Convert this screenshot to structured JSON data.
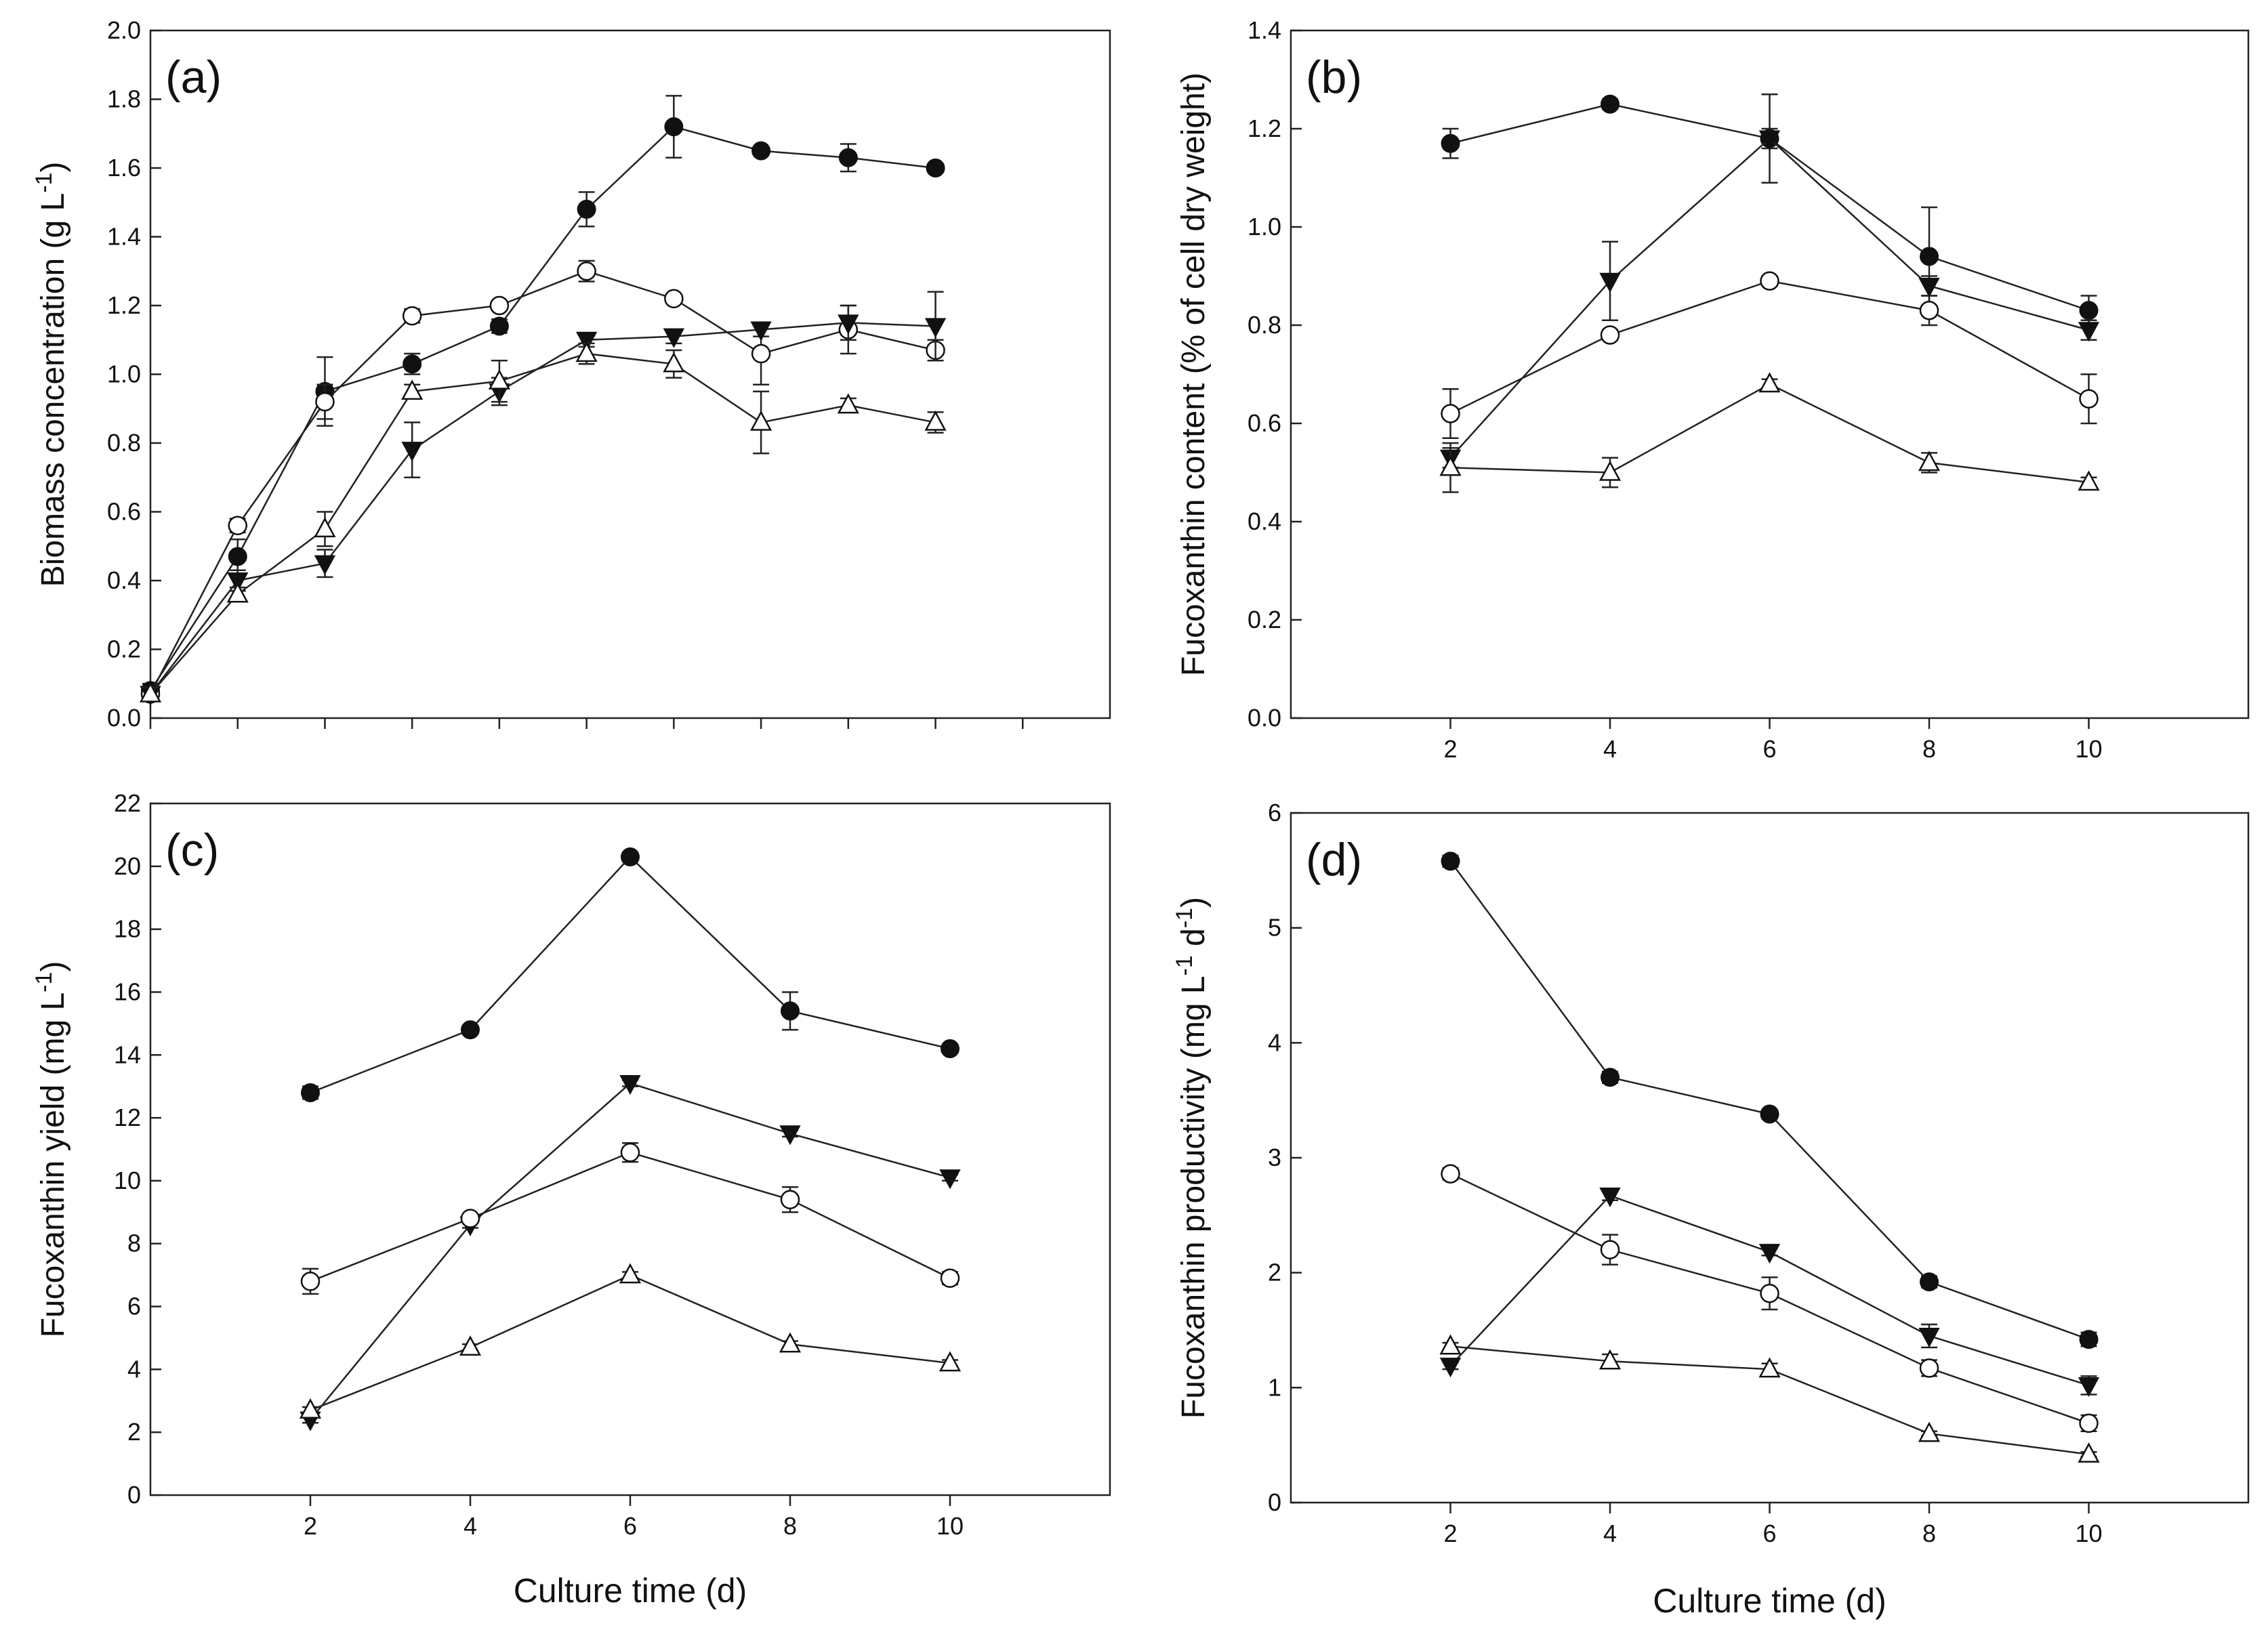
{
  "figure": {
    "x_title": "Culture time (d)"
  },
  "chart_data": [
    {
      "type": "line",
      "panel": "(a)",
      "ylabel_main": "Biomass concentration (g L",
      "ylabel_sup": "-1",
      "ylabel_close": ")",
      "xlabel": "",
      "ylim": [
        0,
        2.0
      ],
      "y_ticks": [
        "0.0",
        "0.2",
        "0.4",
        "0.6",
        "0.8",
        "1.0",
        "1.2",
        "1.4",
        "1.6",
        "1.8",
        "2.0"
      ],
      "x_ticks": [],
      "x_minor_count": 10,
      "xlim": [
        0,
        11
      ],
      "series": [
        {
          "name": "filled circle",
          "marker": "filled-circle",
          "x": [
            0,
            1,
            2,
            3,
            4,
            5,
            6,
            7,
            8,
            9
          ],
          "values": [
            0.08,
            0.47,
            0.95,
            1.03,
            1.14,
            1.48,
            1.72,
            1.65,
            1.63,
            1.6
          ],
          "errors": [
            0.02,
            0.05,
            0.1,
            0.03,
            0.02,
            0.05,
            0.09,
            0.01,
            0.04,
            0.01
          ]
        },
        {
          "name": "open circle",
          "marker": "open-circle",
          "x": [
            0,
            1,
            2,
            3,
            4,
            5,
            6,
            7,
            8,
            9
          ],
          "values": [
            0.07,
            0.56,
            0.92,
            1.17,
            1.2,
            1.3,
            1.22,
            1.06,
            1.13,
            1.07
          ],
          "errors": [
            0.02,
            0.02,
            0.05,
            0.02,
            0.01,
            0.03,
            0.01,
            0.09,
            0.07,
            0.03
          ]
        },
        {
          "name": "filled triangle",
          "marker": "filled-triangle-down",
          "x": [
            0,
            1,
            2,
            3,
            4,
            5,
            6,
            7,
            8,
            9
          ],
          "values": [
            0.07,
            0.4,
            0.45,
            0.78,
            0.95,
            1.1,
            1.11,
            1.13,
            1.15,
            1.14
          ],
          "errors": [
            0.02,
            0.03,
            0.04,
            0.08,
            0.04,
            0.02,
            0.02,
            0.02,
            0.05,
            0.1
          ]
        },
        {
          "name": "open triangle",
          "marker": "open-triangle-up",
          "x": [
            0,
            1,
            2,
            3,
            4,
            5,
            6,
            7,
            8,
            9
          ],
          "values": [
            0.07,
            0.36,
            0.55,
            0.95,
            0.98,
            1.06,
            1.03,
            0.86,
            0.91,
            0.86
          ],
          "errors": [
            0.02,
            0.02,
            0.05,
            0.02,
            0.06,
            0.03,
            0.04,
            0.09,
            0.02,
            0.03
          ]
        }
      ]
    },
    {
      "type": "line",
      "panel": "(b)",
      "ylabel_main": "Fucoxanthin content (% of cell dry weight)",
      "ylabel_sup": "",
      "ylabel_close": "",
      "xlabel": "",
      "ylim": [
        0,
        1.4
      ],
      "y_ticks": [
        "0.0",
        "0.2",
        "0.4",
        "0.6",
        "0.8",
        "1.0",
        "1.2",
        "1.4"
      ],
      "x_ticks": [
        "2",
        "4",
        "6",
        "8",
        "10"
      ],
      "xlim": [
        0,
        12
      ],
      "series": [
        {
          "name": "filled circle",
          "marker": "filled-circle",
          "x": [
            2,
            4,
            6,
            8,
            10
          ],
          "values": [
            1.17,
            1.25,
            1.18,
            0.94,
            0.83
          ],
          "errors": [
            0.03,
            0.01,
            0.09,
            0.1,
            0.03
          ]
        },
        {
          "name": "filled triangle",
          "marker": "filled-triangle-down",
          "x": [
            2,
            4,
            6,
            8,
            10
          ],
          "values": [
            0.53,
            0.89,
            1.18,
            0.88,
            0.79
          ],
          "errors": [
            0.02,
            0.08,
            0.02,
            0.02,
            0.02
          ]
        },
        {
          "name": "open circle",
          "marker": "open-circle",
          "x": [
            2,
            4,
            6,
            8,
            10
          ],
          "values": [
            0.62,
            0.78,
            0.89,
            0.83,
            0.65
          ],
          "errors": [
            0.05,
            0.01,
            0.01,
            0.03,
            0.05
          ]
        },
        {
          "name": "open triangle",
          "marker": "open-triangle-up",
          "x": [
            2,
            4,
            6,
            8,
            10
          ],
          "values": [
            0.51,
            0.5,
            0.68,
            0.52,
            0.48
          ],
          "errors": [
            0.05,
            0.03,
            0.01,
            0.02,
            0.01
          ]
        }
      ]
    },
    {
      "type": "line",
      "panel": "(c)",
      "ylabel_main": "Fucoxanthin yield (mg L",
      "ylabel_sup": "-1",
      "ylabel_close": ")",
      "xlabel": "Culture time (d)",
      "ylim": [
        0,
        22
      ],
      "y_ticks": [
        "0",
        "2",
        "4",
        "6",
        "8",
        "10",
        "12",
        "14",
        "16",
        "18",
        "20",
        "22"
      ],
      "x_ticks": [
        "2",
        "4",
        "6",
        "8",
        "10"
      ],
      "xlim": [
        0,
        12
      ],
      "series": [
        {
          "name": "filled circle",
          "marker": "filled-circle",
          "x": [
            2,
            4,
            6,
            8,
            10
          ],
          "values": [
            12.8,
            14.8,
            20.3,
            15.4,
            14.2
          ],
          "errors": [
            0.2,
            0.1,
            0.1,
            0.6,
            0.1
          ]
        },
        {
          "name": "filled triangle",
          "marker": "filled-triangle-down",
          "x": [
            2,
            4,
            6,
            8,
            10
          ],
          "values": [
            2.4,
            8.6,
            13.1,
            11.5,
            10.1
          ],
          "errors": [
            0.1,
            0.1,
            0.1,
            0.1,
            0.1
          ]
        },
        {
          "name": "open circle",
          "marker": "open-circle",
          "x": [
            2,
            4,
            6,
            8,
            10
          ],
          "values": [
            6.8,
            8.8,
            10.9,
            9.4,
            6.9
          ],
          "errors": [
            0.4,
            0.1,
            0.3,
            0.4,
            0.2
          ]
        },
        {
          "name": "open triangle",
          "marker": "open-triangle-up",
          "x": [
            2,
            4,
            6,
            8,
            10
          ],
          "values": [
            2.7,
            4.7,
            7.0,
            4.8,
            4.2
          ],
          "errors": [
            0.1,
            0.1,
            0.1,
            0.1,
            0.1
          ]
        }
      ]
    },
    {
      "type": "line",
      "panel": "(d)",
      "ylabel_main": "Fucoxanthin productivity (mg L",
      "ylabel_sup": "-1",
      "ylabel_mid": " d",
      "ylabel_sup2": "-1",
      "ylabel_close": ")",
      "xlabel": "Culture time (d)",
      "ylim": [
        0,
        6
      ],
      "y_ticks": [
        "0",
        "1",
        "2",
        "3",
        "4",
        "5",
        "6"
      ],
      "x_ticks": [
        "2",
        "4",
        "6",
        "8",
        "10"
      ],
      "xlim": [
        0,
        12
      ],
      "series": [
        {
          "name": "filled circle",
          "marker": "filled-circle",
          "x": [
            2,
            4,
            6,
            8,
            10
          ],
          "values": [
            5.58,
            3.7,
            3.38,
            1.92,
            1.42
          ],
          "errors": [
            0.05,
            0.05,
            0.04,
            0.05,
            0.06
          ]
        },
        {
          "name": "filled triangle",
          "marker": "filled-triangle-down",
          "x": [
            2,
            4,
            6,
            8,
            10
          ],
          "values": [
            1.19,
            2.67,
            2.18,
            1.45,
            1.02
          ],
          "errors": [
            0.03,
            0.04,
            0.03,
            0.1,
            0.08
          ]
        },
        {
          "name": "open circle",
          "marker": "open-circle",
          "x": [
            2,
            4,
            6,
            8,
            10
          ],
          "values": [
            2.86,
            2.2,
            1.82,
            1.17,
            0.69
          ],
          "errors": [
            0.05,
            0.13,
            0.14,
            0.07,
            0.07
          ]
        },
        {
          "name": "open triangle",
          "marker": "open-triangle-up",
          "x": [
            2,
            4,
            6,
            8,
            10
          ],
          "values": [
            1.36,
            1.23,
            1.16,
            0.6,
            0.42
          ],
          "errors": [
            0.03,
            0.06,
            0.05,
            0.02,
            0.02
          ]
        }
      ]
    }
  ]
}
